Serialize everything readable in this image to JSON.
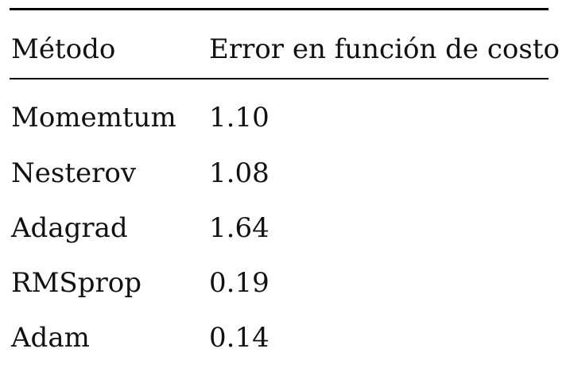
{
  "table": {
    "headers": [
      "Método",
      "Error en función de costo"
    ],
    "rows": [
      [
        "Momemtum",
        "1.10"
      ],
      [
        "Nesterov",
        "1.08"
      ],
      [
        "Adagrad",
        "1.64"
      ],
      [
        "RMSprop",
        "0.19"
      ],
      [
        "Adam",
        "0.14"
      ]
    ]
  }
}
